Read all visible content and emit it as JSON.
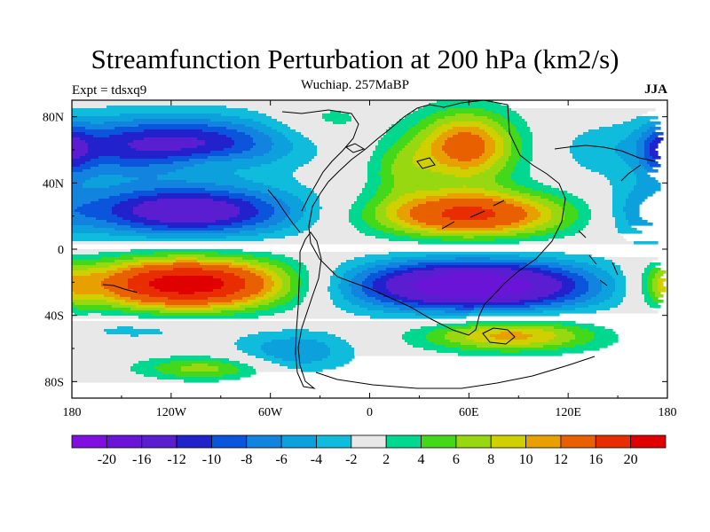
{
  "chart_data": {
    "type": "heatmap",
    "title": "Streamfunction Perturbation at 200 hPa (km2/s)",
    "subtitle": "Wuchiap. 257MaBP",
    "left_label": "Expt = tdsxq9",
    "right_label": "JJA",
    "xlim": [
      -180,
      180
    ],
    "ylim": [
      -90,
      90
    ],
    "x_ticks": [
      {
        "value": -180,
        "label": "180"
      },
      {
        "value": -120,
        "label": "120W"
      },
      {
        "value": -60,
        "label": "60W"
      },
      {
        "value": 0,
        "label": "0"
      },
      {
        "value": 60,
        "label": "60E"
      },
      {
        "value": 120,
        "label": "120E"
      },
      {
        "value": 180,
        "label": "180"
      }
    ],
    "y_ticks": [
      {
        "value": 80,
        "label": "80N"
      },
      {
        "value": 40,
        "label": "40N"
      },
      {
        "value": 0,
        "label": "0"
      },
      {
        "value": -40,
        "label": "40S"
      },
      {
        "value": -80,
        "label": "80S"
      }
    ],
    "levels": [
      -20,
      -16,
      -12,
      -10,
      -8,
      -6,
      -4,
      -2,
      2,
      4,
      6,
      8,
      10,
      12,
      16,
      20
    ],
    "colors": [
      "#7f10e0",
      "#6a14d8",
      "#5a1ed0",
      "#2222cc",
      "#0b54dc",
      "#1284e0",
      "#0ca0dc",
      "#10bcdc",
      "#e8e8e8",
      "#00d890",
      "#44d81a",
      "#98d810",
      "#d0d000",
      "#e8a000",
      "#e86000",
      "#e82e00",
      "#e00000"
    ],
    "colorbar_labels": [
      "-20",
      "-16",
      "-12",
      "-10",
      "-8",
      "-6",
      "-4",
      "-2",
      "2",
      "4",
      "6",
      "8",
      "10",
      "12",
      "16",
      "20"
    ],
    "anomalies": [
      {
        "lon": -107,
        "lat": 64,
        "amp": -12,
        "sx": 42,
        "sy": 12
      },
      {
        "lon": -95,
        "lat": 52,
        "amp": 2,
        "sx": 16,
        "sy": 5
      },
      {
        "lon": -110,
        "lat": 23,
        "amp": -15,
        "sx": 48,
        "sy": 11
      },
      {
        "lon": -160,
        "lat": 60,
        "amp": -5,
        "sx": 25,
        "sy": 14
      },
      {
        "lon": -110,
        "lat": -21,
        "amp": 23,
        "sx": 45,
        "sy": 11
      },
      {
        "lon": -140,
        "lat": -48,
        "amp": -3,
        "sx": 40,
        "sy": 6
      },
      {
        "lon": -100,
        "lat": -72,
        "amp": 7,
        "sx": 28,
        "sy": 5
      },
      {
        "lon": -45,
        "lat": -62,
        "amp": -6,
        "sx": 25,
        "sy": 9
      },
      {
        "lon": -25,
        "lat": 78,
        "amp": 3,
        "sx": 20,
        "sy": 8
      },
      {
        "lon": 58,
        "lat": 62,
        "amp": 14,
        "sx": 22,
        "sy": 15
      },
      {
        "lon": 60,
        "lat": 21,
        "amp": 17,
        "sx": 42,
        "sy": 10
      },
      {
        "lon": 18,
        "lat": 48,
        "amp": 5,
        "sx": 14,
        "sy": 12
      },
      {
        "lon": 62,
        "lat": -22,
        "amp": -20,
        "sx": 55,
        "sy": 11
      },
      {
        "lon": 85,
        "lat": -52,
        "amp": 11,
        "sx": 38,
        "sy": 7
      },
      {
        "lon": 140,
        "lat": 60,
        "amp": -3,
        "sx": 22,
        "sy": 12
      },
      {
        "lon": 165,
        "lat": 22,
        "amp": -4,
        "sx": 18,
        "sy": 14
      },
      {
        "lon": 178,
        "lat": 60,
        "amp": -7,
        "sx": 10,
        "sy": 12
      },
      {
        "lon": 180,
        "lat": -22,
        "amp": 6,
        "sx": 10,
        "sy": 10
      }
    ]
  }
}
